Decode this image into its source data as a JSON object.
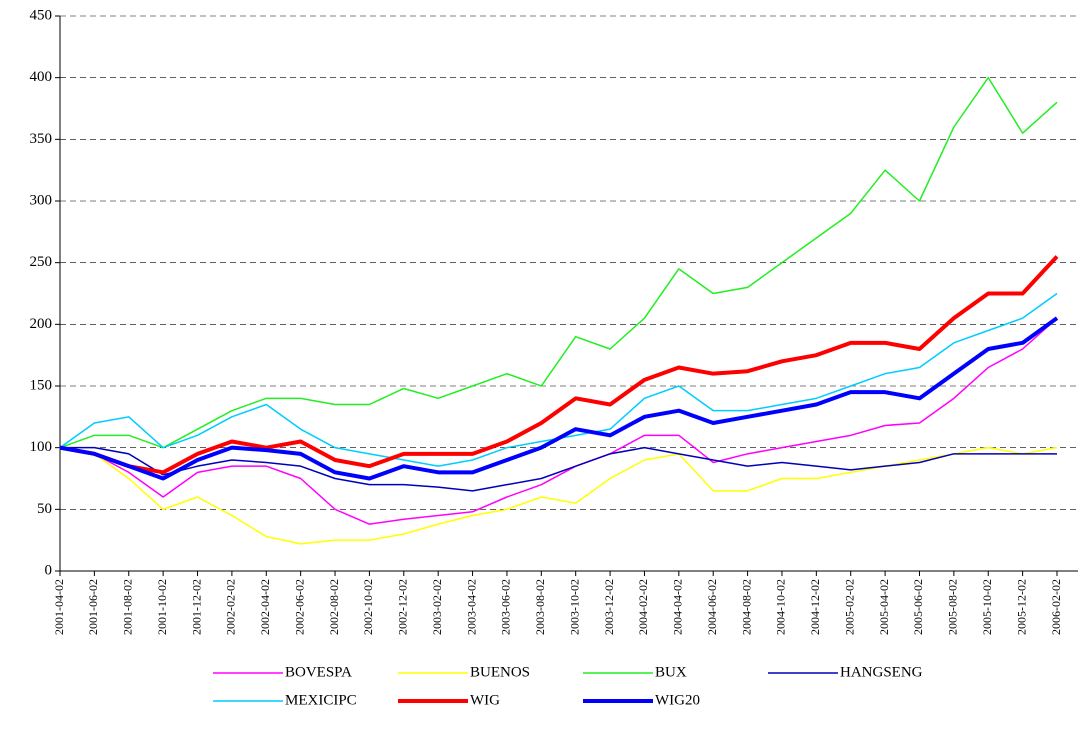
{
  "chart_data": {
    "type": "line",
    "categories": [
      "2001-04-02",
      "2001-06-02",
      "2001-08-02",
      "2001-10-02",
      "2001-12-02",
      "2002-02-02",
      "2002-04-02",
      "2002-06-02",
      "2002-08-02",
      "2002-10-02",
      "2002-12-02",
      "2003-02-02",
      "2003-04-02",
      "2003-06-02",
      "2003-08-02",
      "2003-10-02",
      "2003-12-02",
      "2004-02-02",
      "2004-04-02",
      "2004-06-02",
      "2004-08-02",
      "2004-10-02",
      "2004-12-02",
      "2005-02-02",
      "2005-04-02",
      "2005-06-02",
      "2005-08-02",
      "2005-10-02",
      "2005-12-02",
      "2006-02-02"
    ],
    "series": [
      {
        "name": "BOVESPA",
        "color": "#ff00ff",
        "line_width": 1.5,
        "values": [
          100,
          95,
          80,
          60,
          80,
          85,
          85,
          75,
          50,
          38,
          42,
          45,
          48,
          60,
          70,
          85,
          95,
          110,
          110,
          88,
          95,
          100,
          105,
          110,
          118,
          120,
          140,
          165,
          180,
          205
        ]
      },
      {
        "name": "BUENOS",
        "color": "#ffff00",
        "line_width": 1.5,
        "values": [
          100,
          95,
          75,
          50,
          60,
          45,
          28,
          22,
          25,
          25,
          30,
          38,
          45,
          50,
          60,
          55,
          75,
          90,
          95,
          65,
          65,
          75,
          75,
          80,
          85,
          90,
          95,
          100,
          95,
          100
        ]
      },
      {
        "name": "BUX",
        "color": "#22ee22",
        "line_width": 1.5,
        "values": [
          100,
          110,
          110,
          100,
          115,
          130,
          140,
          140,
          135,
          135,
          148,
          140,
          150,
          160,
          150,
          190,
          180,
          205,
          245,
          225,
          230,
          250,
          270,
          290,
          325,
          300,
          360,
          400,
          355,
          380
        ]
      },
      {
        "name": "HANGSENG",
        "color": "#0000bb",
        "line_width": 1.5,
        "values": [
          100,
          100,
          95,
          78,
          85,
          90,
          88,
          85,
          75,
          70,
          70,
          68,
          65,
          70,
          75,
          85,
          95,
          100,
          95,
          90,
          85,
          88,
          85,
          82,
          85,
          88,
          95,
          95,
          95,
          95
        ]
      },
      {
        "name": "MEXICIPC",
        "color": "#00ccff",
        "line_width": 1.5,
        "values": [
          100,
          120,
          125,
          100,
          110,
          125,
          135,
          115,
          100,
          95,
          90,
          85,
          90,
          100,
          105,
          110,
          115,
          140,
          150,
          130,
          130,
          135,
          140,
          150,
          160,
          165,
          185,
          195,
          205,
          225
        ]
      },
      {
        "name": "WIG",
        "color": "#ff0000",
        "line_width": 4,
        "values": [
          100,
          95,
          85,
          80,
          95,
          105,
          100,
          105,
          90,
          85,
          95,
          95,
          95,
          105,
          120,
          140,
          135,
          155,
          165,
          160,
          162,
          170,
          175,
          185,
          185,
          180,
          205,
          225,
          225,
          255
        ]
      },
      {
        "name": "WIG20",
        "color": "#0000ff",
        "line_width": 4,
        "values": [
          100,
          95,
          85,
          75,
          90,
          100,
          98,
          95,
          80,
          75,
          85,
          80,
          80,
          90,
          100,
          115,
          110,
          125,
          130,
          120,
          125,
          130,
          135,
          145,
          145,
          140,
          160,
          180,
          185,
          205
        ]
      }
    ],
    "ylim": [
      0,
      450
    ],
    "yticks": [
      0,
      50,
      100,
      150,
      200,
      250,
      300,
      350,
      400,
      450
    ],
    "grid": true,
    "legend": "bottom"
  }
}
